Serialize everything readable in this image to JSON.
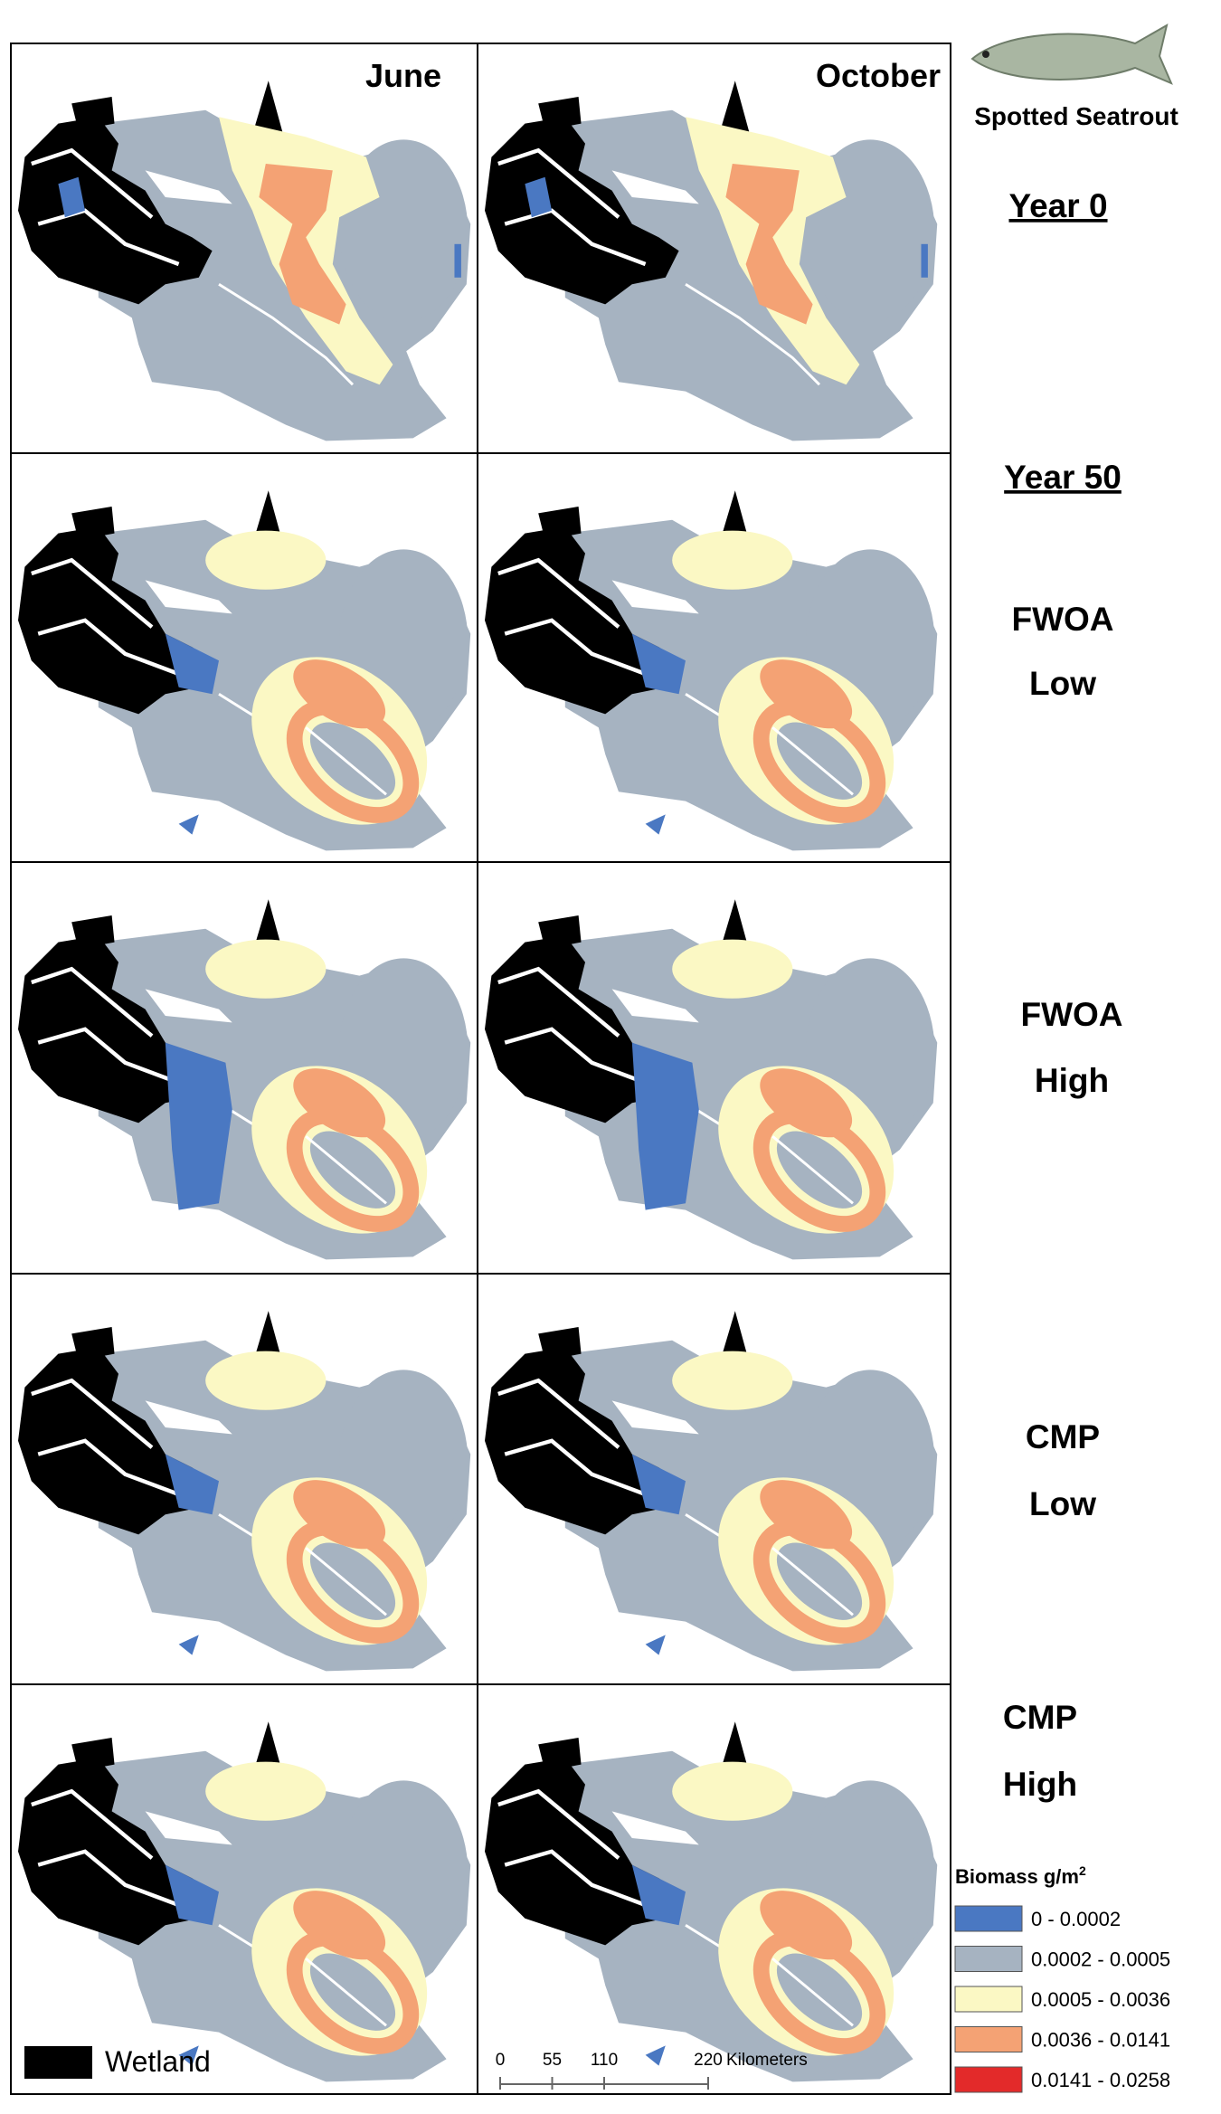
{
  "columns": [
    "June",
    "October"
  ],
  "species": "Spotted Seatrout",
  "heading": "Year 50",
  "row_labels": [
    [
      "Year 0"
    ],
    [
      "FWOA",
      "Low"
    ],
    [
      "FWOA",
      "High"
    ],
    [
      "CMP",
      "Low"
    ],
    [
      "CMP",
      "High"
    ]
  ],
  "legend": {
    "title": "Biomass g/m",
    "title_sup": "2",
    "items": [
      {
        "label": "0 - 0.0002",
        "color": "#4a78c2"
      },
      {
        "label": "0.0002 - 0.0005",
        "color": "#a6b3c1"
      },
      {
        "label": "0.0005 - 0.0036",
        "color": "#fbf8c4"
      },
      {
        "label": "0.0036 - 0.0141",
        "color": "#f4a274"
      },
      {
        "label": "0.0141 - 0.0258",
        "color": "#e32a2a"
      }
    ]
  },
  "wetland_label": "Wetland",
  "scale_bar": {
    "ticks": [
      0,
      55,
      110,
      220
    ],
    "unit": "Kilometers"
  }
}
